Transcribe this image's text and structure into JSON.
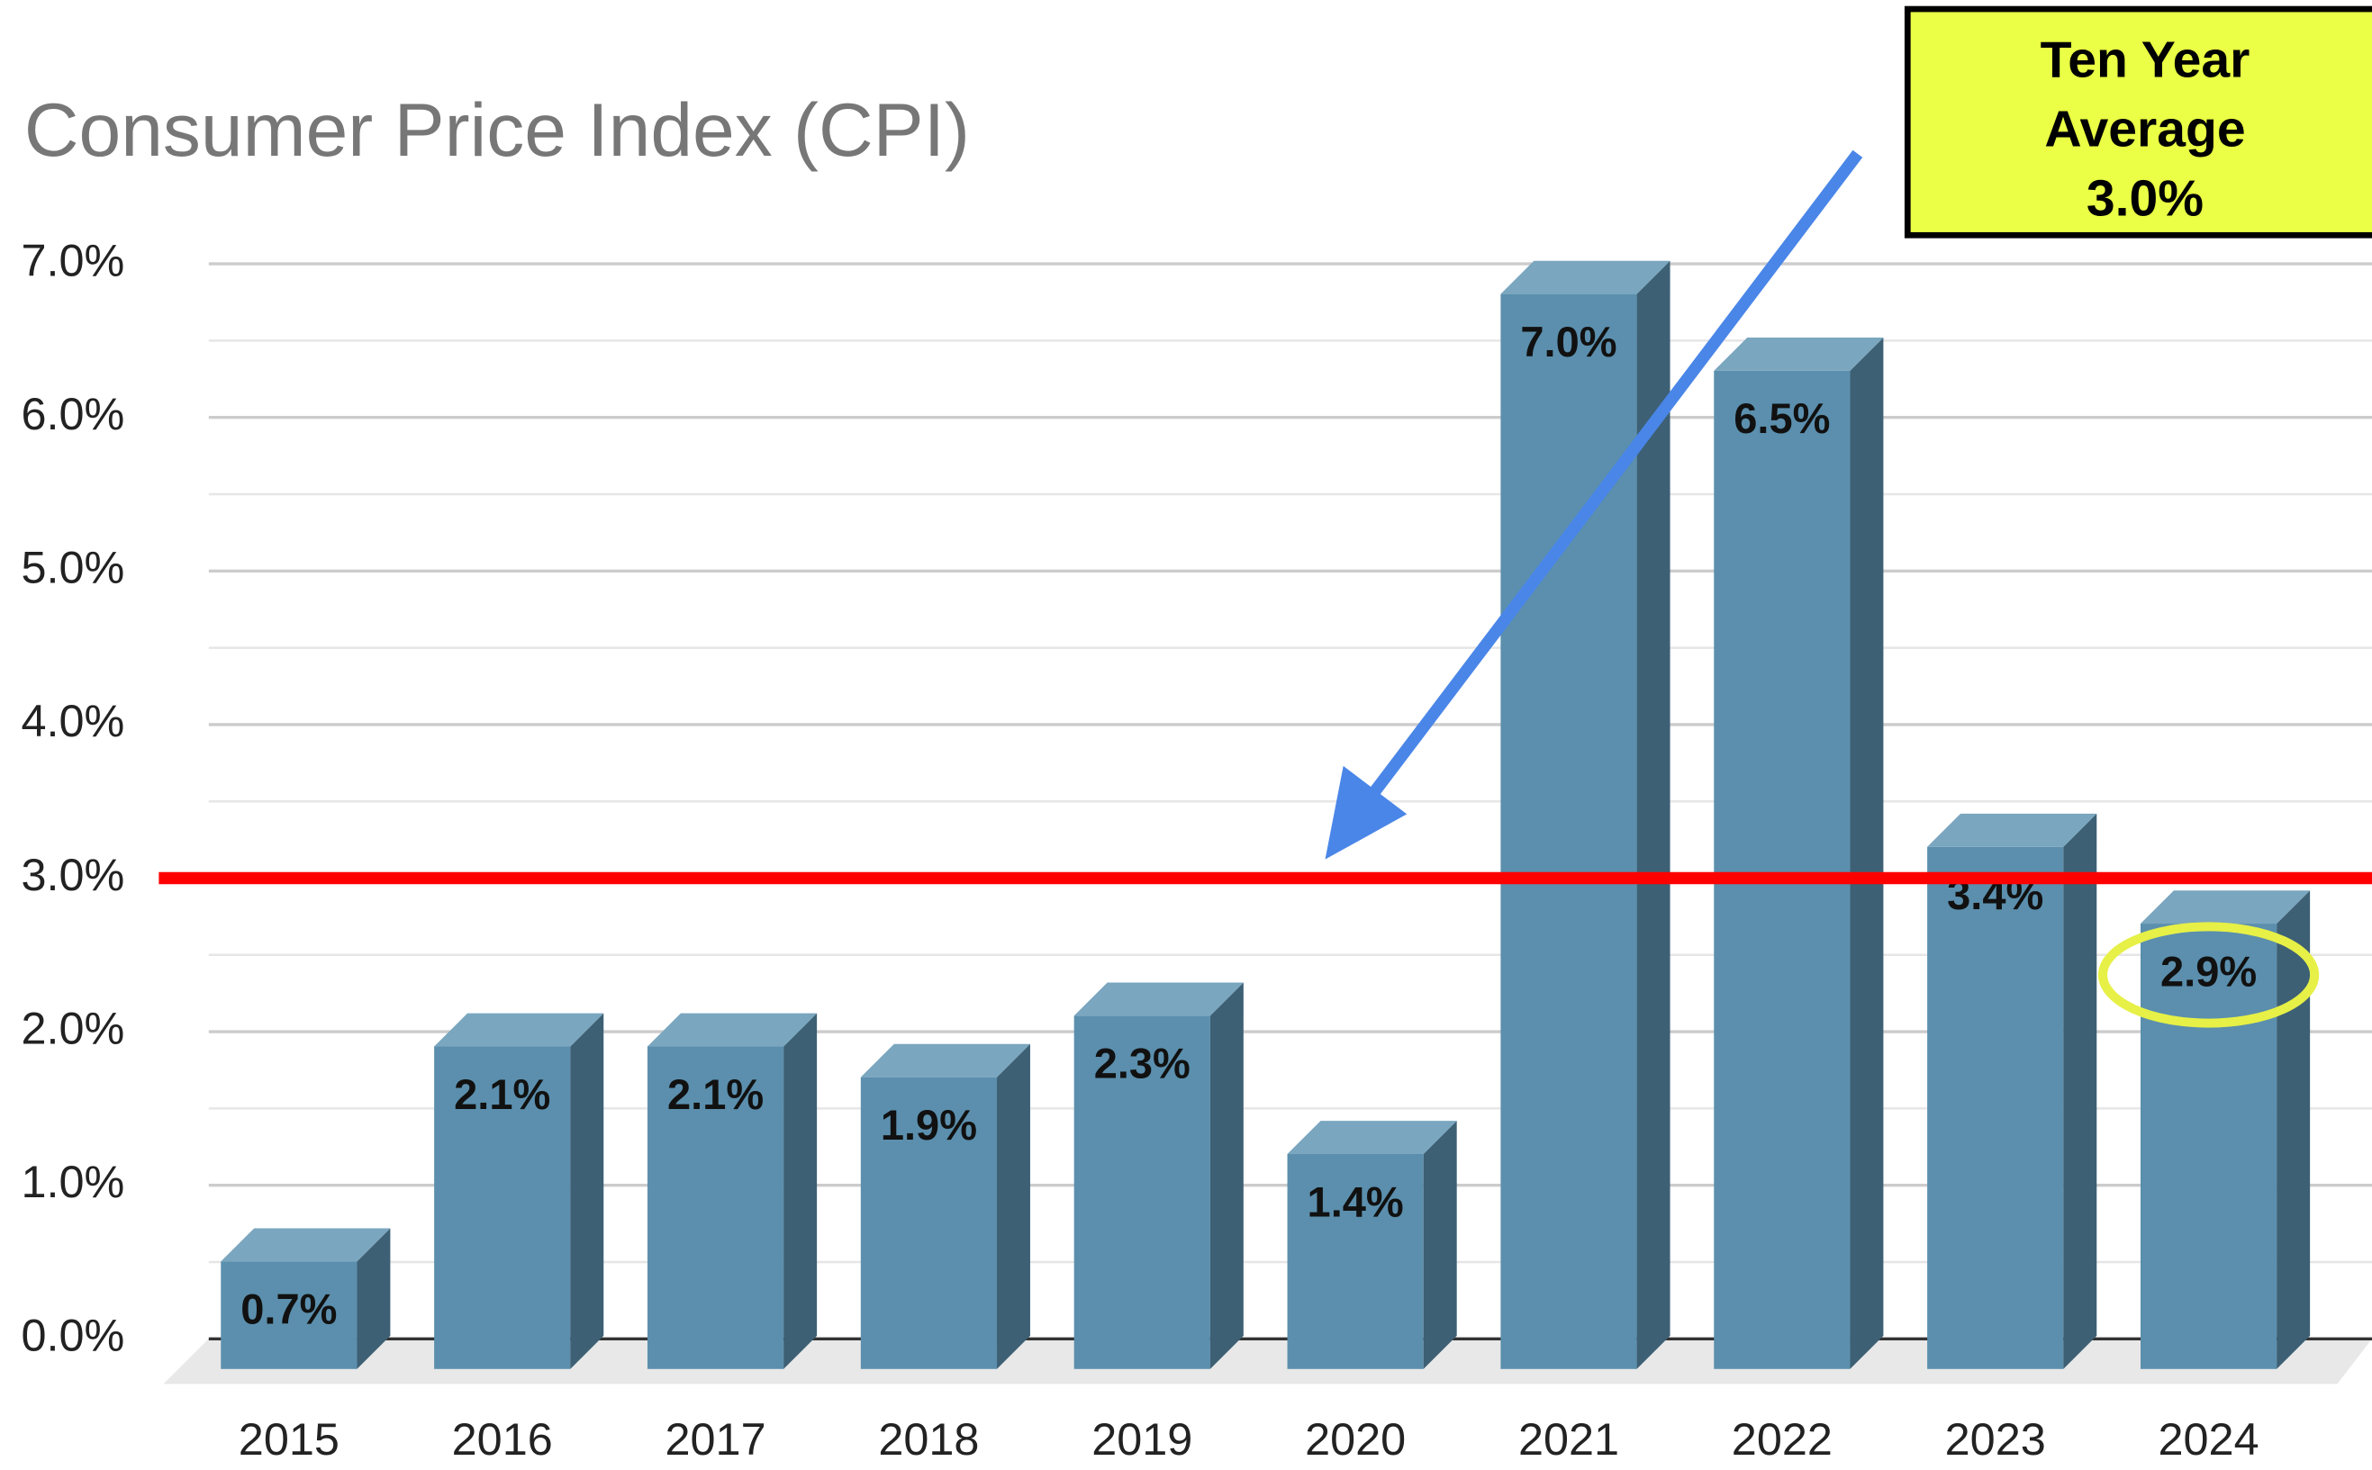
{
  "chart_data": {
    "type": "bar3d",
    "title": "Consumer Price Index (CPI)",
    "categories": [
      "2015",
      "2016",
      "2017",
      "2018",
      "2019",
      "2020",
      "2021",
      "2022",
      "2023",
      "2024"
    ],
    "values": [
      0.7,
      2.1,
      2.1,
      1.9,
      2.3,
      1.4,
      7.0,
      6.5,
      3.4,
      2.9
    ],
    "value_labels": [
      "0.7%",
      "2.1%",
      "2.1%",
      "1.9%",
      "2.3%",
      "1.4%",
      "7.0%",
      "6.5%",
      "3.4%",
      "2.9%"
    ],
    "color": "#5b8fad",
    "ylim": [
      0,
      7
    ],
    "yticks": [
      {
        "value": 0,
        "label": "0.0%"
      },
      {
        "value": 1,
        "label": "1.0%"
      },
      {
        "value": 2,
        "label": "2.0%"
      },
      {
        "value": 3,
        "label": "3.0%"
      },
      {
        "value": 4,
        "label": "4.0%"
      },
      {
        "value": 5,
        "label": "5.0%"
      },
      {
        "value": 6,
        "label": "6.0%"
      },
      {
        "value": 7,
        "label": "7.0%"
      }
    ],
    "grid": true,
    "average": {
      "value": 3,
      "color": "#ff0000"
    },
    "annotation": {
      "lines": [
        "Ten Year",
        "Average",
        "3.0%"
      ]
    },
    "highlight": {
      "index": 9,
      "color": "#e6f046"
    }
  }
}
